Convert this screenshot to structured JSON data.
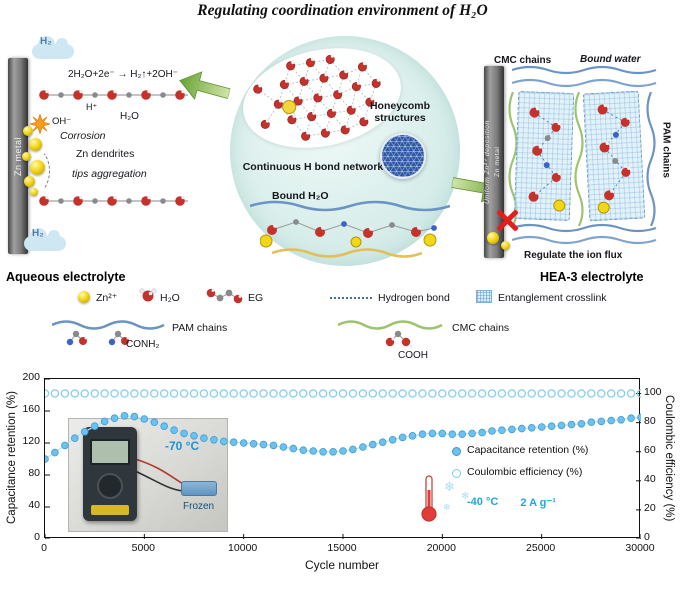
{
  "title": "Regulating coordination environment of H₂O",
  "scheme": {
    "left": {
      "h2_top": "H₂",
      "reaction": "2H₂O+2e⁻ → H₂↑+2OH⁻",
      "h_plus": "H⁺",
      "h2o": "H₂O",
      "oh": "OH⁻",
      "corrosion": "Corrosion",
      "zn_dendrites": "Zn dendrites",
      "tips_aggregation": "tips aggregation",
      "h2_bottom": "H₂",
      "electrode": "Zn metal",
      "caption": "Aqueous electrolyte"
    },
    "center": {
      "h_bond_network": "Continuous H bond network",
      "honeycomb": "Honeycomb structures",
      "bound_h2o": "Bound H₂O"
    },
    "right": {
      "cmc_chains": "CMC chains",
      "bound_water": "Bound water",
      "electrode_line1": "Uniform Zn²⁺ deposition",
      "electrode_line2": "Zn metal",
      "pam_chains": "PAM chains",
      "regulate": "Regulate the ion flux",
      "caption": "HEA-3 electrolyte"
    }
  },
  "legend": {
    "zn": "Zn²⁺",
    "h2o": "H₂O",
    "eg": "EG",
    "hydrogen_bond": "Hydrogen bond",
    "entanglement": "Entanglement crosslink",
    "pam": "PAM chains",
    "conh2": "CONH₂",
    "cmc": "CMC chains",
    "cooh": "COOH"
  },
  "chart": {
    "inset_temp": "-70 °C",
    "inset_caption": "Frozen"
  },
  "colors": {
    "accent_blue": "#1ea7e0",
    "marker_blue": "#6ec1ee",
    "zn_yellow": "#f2d716",
    "oxygen_red": "#c5312b",
    "arrow_green": "#67a336",
    "circle_teal": "#ddf0ed"
  },
  "chart_data": {
    "type": "scatter",
    "title": "",
    "xlabel": "Cycle number",
    "ylabel_left": "Capacitance retention (%)",
    "ylabel_right": "Coulombic efficiency (%)",
    "xlim": [
      0,
      30000
    ],
    "ylim_left": [
      0,
      200
    ],
    "ylim_right": [
      0,
      110
    ],
    "x_ticks": [
      0,
      5000,
      10000,
      15000,
      20000,
      25000,
      30000
    ],
    "y_ticks_left": [
      0,
      40,
      80,
      120,
      160,
      200
    ],
    "y_ticks_right": [
      0,
      20,
      40,
      60,
      80,
      100
    ],
    "grid": false,
    "legend_position": "center-right",
    "annotations": [
      {
        "text": "-40 °C"
      },
      {
        "text": "2 A g⁻¹"
      }
    ],
    "x": [
      0,
      500,
      1000,
      1500,
      2000,
      2500,
      3000,
      3500,
      4000,
      4500,
      5000,
      5500,
      6000,
      6500,
      7000,
      7500,
      8000,
      8500,
      9000,
      9500,
      10000,
      10500,
      11000,
      11500,
      12000,
      12500,
      13000,
      13500,
      14000,
      14500,
      15000,
      15500,
      16000,
      16500,
      17000,
      17500,
      18000,
      18500,
      19000,
      19500,
      20000,
      20500,
      21000,
      21500,
      22000,
      22500,
      23000,
      23500,
      24000,
      24500,
      25000,
      25500,
      26000,
      26500,
      27000,
      27500,
      28000,
      28500,
      29000,
      29500,
      30000
    ],
    "series": [
      {
        "name": "Capacitance retention (%)",
        "axis": "left",
        "marker": "filled-circle",
        "color": "#6ec1ee",
        "values": [
          100,
          108,
          117,
          126,
          134,
          141,
          147,
          151,
          154,
          153,
          150,
          146,
          141,
          136,
          132,
          129,
          126,
          124,
          122,
          121,
          120,
          119,
          118,
          117,
          115,
          113,
          111,
          110,
          109,
          109,
          110,
          112,
          115,
          118,
          121,
          124,
          127,
          129,
          131,
          132,
          132,
          131,
          131,
          132,
          133,
          135,
          136,
          137,
          138,
          139,
          140,
          141,
          142,
          143,
          144,
          146,
          147,
          148,
          149,
          151,
          152
        ]
      },
      {
        "name": "Coulombic efficiency (%)",
        "axis": "right",
        "marker": "open-circle",
        "color": "#85cdf1",
        "values": [
          100,
          100,
          100,
          100,
          100,
          100,
          100,
          100,
          100,
          100,
          100,
          100,
          100,
          100,
          100,
          100,
          100,
          100,
          100,
          100,
          100,
          100,
          100,
          100,
          100,
          100,
          100,
          100,
          100,
          100,
          100,
          100,
          100,
          100,
          100,
          100,
          100,
          100,
          100,
          100,
          100,
          100,
          100,
          100,
          100,
          100,
          100,
          100,
          100,
          100,
          100,
          100,
          100,
          100,
          100,
          100,
          100,
          100,
          100,
          100,
          100
        ]
      }
    ]
  }
}
